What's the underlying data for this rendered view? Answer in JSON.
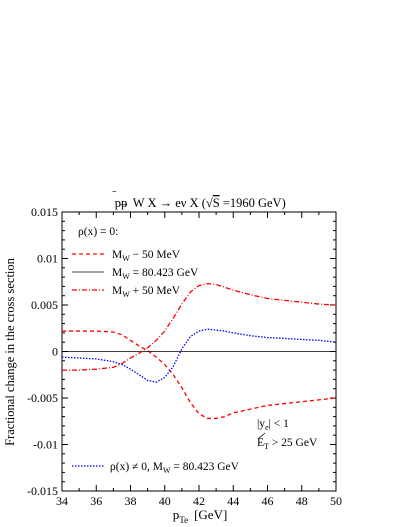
{
  "chart_data": {
    "type": "line",
    "title_parts": [
      "pp",
      "̄",
      " → W X → eν X  (",
      "√",
      "S",
      " =1960 GeV)"
    ],
    "title": "pp̄ → W X → eν X  (√S =1960 GeV)",
    "xlabel": "p",
    "xlabel_sub": "Te",
    "xlabel_unit": "[GeV]",
    "ylabel": "Fractional change in the cross section",
    "xlim": [
      34,
      50
    ],
    "ylim": [
      -0.015,
      0.015
    ],
    "x_ticks": [
      34,
      36,
      38,
      40,
      42,
      44,
      46,
      48,
      50
    ],
    "x_tick_labels": [
      "34",
      "36",
      "38",
      "40",
      "42",
      "44",
      "46",
      "48",
      "50"
    ],
    "y_ticks": [
      -0.015,
      -0.01,
      -0.005,
      0,
      0.005,
      0.01,
      0.015
    ],
    "y_tick_labels": [
      "-0.015",
      "-0.01",
      "-0.005",
      "0",
      "0.005",
      "0.01",
      "0.015"
    ],
    "legend_heading": "ρ(x) = 0:",
    "annotations": {
      "rapidity_cut": "|y",
      "rapidity_cut_sub": "e",
      "rapidity_cut_rest": "| < 1",
      "met_cut": "E",
      "met_cut_sub": "T",
      "met_cut_rest": " > 25 GeV"
    },
    "series": [
      {
        "name": "M",
        "name_sub": "W",
        "name_rest": " − 50 MeV",
        "color": "#ff0000",
        "dash": "4,3",
        "x": [
          34,
          35,
          36,
          37,
          37.5,
          38,
          38.5,
          39,
          39.5,
          40,
          40.5,
          41,
          41.5,
          42,
          42.5,
          43,
          43.5,
          44,
          45,
          46,
          47,
          48,
          49,
          50
        ],
        "values": [
          0.0022,
          0.0022,
          0.0022,
          0.0021,
          0.0018,
          0.0012,
          0.0006,
          0.0001,
          -0.0006,
          -0.0014,
          -0.0025,
          -0.0039,
          -0.0055,
          -0.0067,
          -0.0072,
          -0.0072,
          -0.007,
          -0.0066,
          -0.0062,
          -0.0058,
          -0.0056,
          -0.0054,
          -0.0052,
          -0.005
        ]
      },
      {
        "name": "M",
        "name_sub": "W",
        "name_rest": " = 80.423 GeV",
        "color": "#000000",
        "dash": "",
        "x": [
          34,
          50
        ],
        "values": [
          0,
          0
        ]
      },
      {
        "name": "M",
        "name_sub": "W",
        "name_rest": " + 50 MeV",
        "color": "#ff0000",
        "dash": "5,2,1,2",
        "x": [
          34,
          35,
          36,
          37,
          37.5,
          38,
          38.5,
          39,
          39.5,
          40,
          40.5,
          41,
          41.5,
          42,
          42.5,
          43,
          43.5,
          44,
          45,
          46,
          47,
          48,
          49,
          50
        ],
        "values": [
          -0.002,
          -0.002,
          -0.0019,
          -0.0017,
          -0.0013,
          -0.0007,
          -0.0002,
          0.0004,
          0.0012,
          0.0022,
          0.0036,
          0.0051,
          0.0064,
          0.0071,
          0.0073,
          0.0072,
          0.0069,
          0.0066,
          0.0061,
          0.0057,
          0.0055,
          0.0053,
          0.0051,
          0.005
        ]
      },
      {
        "name": "ρ(x) ≠ 0, M",
        "name_sub": "W",
        "name_rest": " = 80.423 GeV",
        "color": "#0000ff",
        "dash": "1.5,1.5",
        "x": [
          34,
          35,
          36,
          37,
          37.5,
          38,
          38.5,
          39,
          39.5,
          40,
          40.5,
          41,
          41.5,
          42,
          42.5,
          43,
          43.5,
          44,
          45,
          46,
          47,
          48,
          49,
          50
        ],
        "values": [
          -0.0006,
          -0.0007,
          -0.0008,
          -0.0011,
          -0.0014,
          -0.0019,
          -0.0025,
          -0.0031,
          -0.0033,
          -0.0028,
          -0.0016,
          0.0003,
          0.0016,
          0.0022,
          0.0024,
          0.0023,
          0.0022,
          0.002,
          0.0017,
          0.0015,
          0.0014,
          0.0013,
          0.0012,
          0.001
        ]
      }
    ]
  }
}
